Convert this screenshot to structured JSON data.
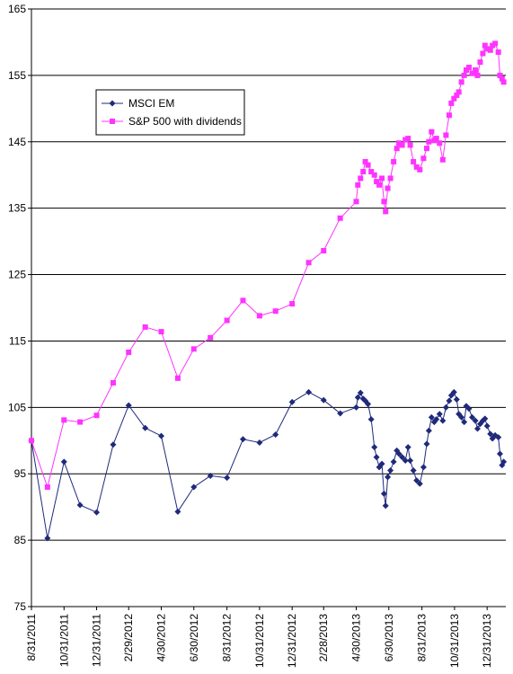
{
  "chart_data": {
    "type": "line",
    "x": [
      "8/31/2011",
      "9/30/2011",
      "10/31/2011",
      "11/30/2011",
      "12/31/2011",
      "1/31/2012",
      "2/29/2012",
      "3/31/2012",
      "4/30/2012",
      "5/31/2012",
      "6/30/2012",
      "7/31/2012",
      "8/31/2012",
      "9/30/2012",
      "10/31/2012",
      "11/30/2012",
      "12/31/2012",
      "1/31/2013",
      "2/28/2013",
      "3/31/2013",
      "4/30/2013",
      "5/3/2013",
      "5/8/2013",
      "5/13/2013",
      "5/17/2013",
      "5/22/2013",
      "5/28/2013",
      "6/3/2013",
      "6/7/2013",
      "6/12/2013",
      "6/17/2013",
      "6/21/2013",
      "6/24/2013",
      "6/28/2013",
      "7/3/2013",
      "7/9/2013",
      "7/15/2013",
      "7/19/2013",
      "7/25/2013",
      "7/31/2013",
      "8/5/2013",
      "8/9/2013",
      "8/15/2013",
      "8/21/2013",
      "8/27/2013",
      "9/3/2013",
      "9/9/2013",
      "9/13/2013",
      "9/18/2013",
      "9/23/2013",
      "9/27/2013",
      "10/3/2013",
      "10/9/2013",
      "10/15/2013",
      "10/21/2013",
      "10/25/2013",
      "10/30/2013",
      "11/4/2013",
      "11/8/2013",
      "11/13/2013",
      "11/18/2013",
      "11/22/2013",
      "11/27/2013",
      "12/3/2013",
      "12/9/2013",
      "12/13/2013",
      "12/18/2013",
      "12/23/2013",
      "12/27/2013",
      "12/31/2013",
      "1/6/2014",
      "1/10/2014",
      "1/15/2014",
      "1/21/2014",
      "1/24/2014",
      "1/28/2014",
      "1/31/2014"
    ],
    "series": [
      {
        "name": "MSCI EM",
        "color": "#1f2a7a",
        "marker": "diamond",
        "values": [
          100,
          85.3,
          96.8,
          90.3,
          89.2,
          99.4,
          105.3,
          101.9,
          100.7,
          89.3,
          93,
          94.7,
          94.4,
          100.2,
          99.7,
          100.9,
          105.8,
          107.3,
          106.1,
          104.1,
          105,
          106.5,
          107.2,
          106.3,
          106,
          105.5,
          103.2,
          99,
          97.5,
          96,
          96.5,
          92,
          90.2,
          94.5,
          95.5,
          96.8,
          98.5,
          98,
          97.5,
          97,
          99,
          97,
          95.5,
          94,
          93.5,
          96,
          99.5,
          101.5,
          103.5,
          102.8,
          103.2,
          104,
          103,
          105,
          106,
          106.8,
          107.3,
          106.2,
          104,
          103.5,
          102.8,
          105.2,
          104.8,
          103.5,
          103,
          101.8,
          102.5,
          103,
          103.3,
          102.2,
          101,
          100.3,
          100.8,
          100.5,
          98,
          96.3,
          96.8
        ]
      },
      {
        "name": "S&P 500 with dividends",
        "color": "#ff33ff",
        "marker": "square",
        "values": [
          100,
          93,
          103.1,
          102.8,
          103.8,
          108.7,
          113.3,
          117.1,
          116.4,
          109.4,
          113.8,
          115.5,
          118.1,
          121.1,
          118.8,
          119.5,
          120.6,
          126.8,
          128.6,
          133.5,
          136,
          138.5,
          139.5,
          140.5,
          142,
          141.5,
          140.5,
          140,
          139,
          138.5,
          139.5,
          136,
          134.5,
          138,
          139.5,
          142,
          144,
          144.8,
          144.5,
          145.3,
          145.5,
          144.5,
          142,
          141.2,
          140.8,
          142.5,
          144,
          145,
          146.5,
          145.2,
          145.5,
          144.8,
          142.3,
          146,
          149,
          150.8,
          151.5,
          152,
          152.5,
          154,
          155,
          155.8,
          156.2,
          155.3,
          155.8,
          155,
          157,
          158.3,
          159.5,
          159,
          158.8,
          159.5,
          159.8,
          158.5,
          155,
          154.5,
          154
        ]
      }
    ],
    "xlim": [
      "8/31/2011",
      "2/4/2014"
    ],
    "xticks": [
      "8/31/2011",
      "10/31/2011",
      "12/31/2011",
      "2/29/2012",
      "4/30/2012",
      "6/30/2012",
      "8/31/2012",
      "10/31/2012",
      "12/31/2012",
      "2/28/2013",
      "4/30/2013",
      "6/30/2013",
      "8/31/2013",
      "10/31/2013",
      "12/31/2013"
    ],
    "ylim": [
      75,
      165
    ],
    "yticks": [
      75,
      85,
      95,
      105,
      115,
      125,
      135,
      145,
      155,
      165
    ],
    "grid": true,
    "legend": "upper-left"
  }
}
